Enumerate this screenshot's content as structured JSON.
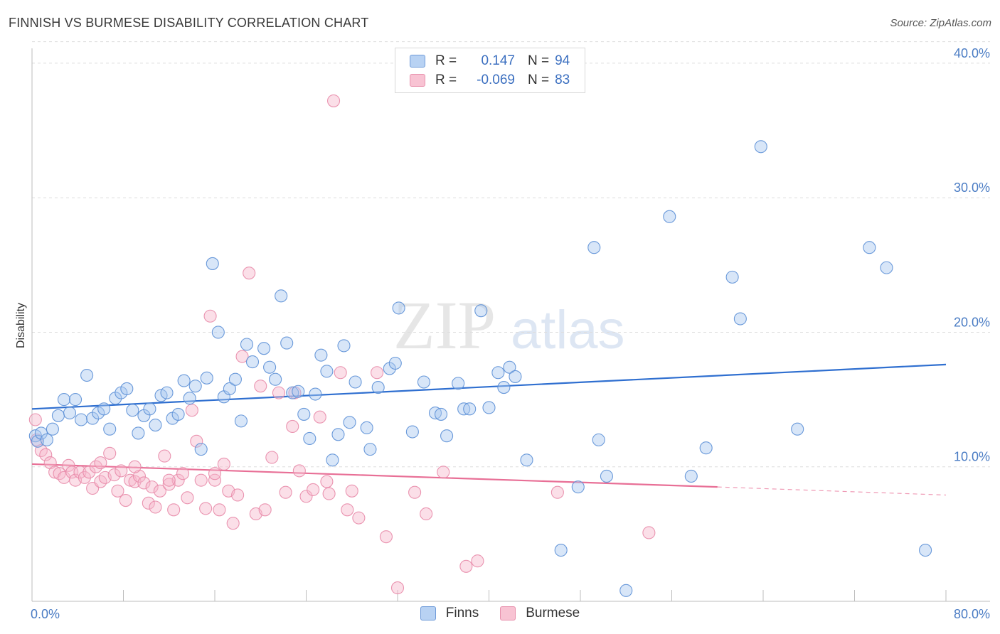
{
  "title": "FINNISH VS BURMESE DISABILITY CORRELATION CHART",
  "source": "Source: ZipAtlas.com",
  "watermark": {
    "zip": "ZIP",
    "atlas": "atlas"
  },
  "legend": {
    "finns": {
      "r_label": "R =",
      "r_value": "0.147",
      "n_label": "N =",
      "n_value": "94"
    },
    "burmese": {
      "r_label": "R =",
      "r_value": "-0.069",
      "n_label": "N =",
      "n_value": "83"
    }
  },
  "chart_data": {
    "type": "scatter",
    "title": "FINNISH VS BURMESE DISABILITY CORRELATION CHART",
    "xlabel": "",
    "ylabel": "Disability",
    "xlim": [
      0,
      80
    ],
    "ylim": [
      0,
      41
    ],
    "x_tick_labels": [
      "0.0%",
      "80.0%"
    ],
    "y_ticks": [
      10,
      20,
      30,
      40
    ],
    "y_tick_labels": [
      "10.0%",
      "20.0%",
      "30.0%",
      "40.0%"
    ],
    "grid": "horizontal dashed",
    "legend_position": "top-center",
    "colors": {
      "finns_fill": "#a9c8f0",
      "finns_stroke": "#5b8fd6",
      "finns_line": "#2f6fd0",
      "burmese_fill": "#f6b8cb",
      "burmese_stroke": "#e88aa8",
      "burmese_line": "#e86f96"
    },
    "series": [
      {
        "name": "Finns",
        "r": 0.147,
        "n": 94,
        "trend": {
          "x": [
            0,
            80
          ],
          "y": [
            14.3,
            17.6
          ]
        },
        "points": [
          [
            0.3,
            12.3
          ],
          [
            0.5,
            11.9
          ],
          [
            0.8,
            12.5
          ],
          [
            1.3,
            12.0
          ],
          [
            1.8,
            12.8
          ],
          [
            2.3,
            13.8
          ],
          [
            2.8,
            15.0
          ],
          [
            3.3,
            14.0
          ],
          [
            3.8,
            15.0
          ],
          [
            4.3,
            13.5
          ],
          [
            4.8,
            16.8
          ],
          [
            5.3,
            13.6
          ],
          [
            5.8,
            14.0
          ],
          [
            6.3,
            14.3
          ],
          [
            6.8,
            12.8
          ],
          [
            7.3,
            15.1
          ],
          [
            7.8,
            15.5
          ],
          [
            8.3,
            15.8
          ],
          [
            8.8,
            14.2
          ],
          [
            9.3,
            12.5
          ],
          [
            9.8,
            13.8
          ],
          [
            10.3,
            14.3
          ],
          [
            10.8,
            13.1
          ],
          [
            11.3,
            15.3
          ],
          [
            11.8,
            15.5
          ],
          [
            12.3,
            13.6
          ],
          [
            12.8,
            13.9
          ],
          [
            13.3,
            16.4
          ],
          [
            13.8,
            15.1
          ],
          [
            14.3,
            16.0
          ],
          [
            14.8,
            11.3
          ],
          [
            15.3,
            16.6
          ],
          [
            15.8,
            25.1
          ],
          [
            16.3,
            20.0
          ],
          [
            16.8,
            15.2
          ],
          [
            17.3,
            15.8
          ],
          [
            17.8,
            16.5
          ],
          [
            18.3,
            13.4
          ],
          [
            18.8,
            19.1
          ],
          [
            19.3,
            17.8
          ],
          [
            20.3,
            18.8
          ],
          [
            20.8,
            17.4
          ],
          [
            21.3,
            16.5
          ],
          [
            21.8,
            22.7
          ],
          [
            22.3,
            19.2
          ],
          [
            22.8,
            15.5
          ],
          [
            23.3,
            15.6
          ],
          [
            23.8,
            13.9
          ],
          [
            24.3,
            12.1
          ],
          [
            24.8,
            15.4
          ],
          [
            25.3,
            18.3
          ],
          [
            25.8,
            17.1
          ],
          [
            26.3,
            10.5
          ],
          [
            26.8,
            12.4
          ],
          [
            27.3,
            19.0
          ],
          [
            27.8,
            13.3
          ],
          [
            28.3,
            16.3
          ],
          [
            29.3,
            12.9
          ],
          [
            29.6,
            11.3
          ],
          [
            30.3,
            15.9
          ],
          [
            31.3,
            17.3
          ],
          [
            31.8,
            17.7
          ],
          [
            32.1,
            21.8
          ],
          [
            33.3,
            12.6
          ],
          [
            34.3,
            16.3
          ],
          [
            35.3,
            14.0
          ],
          [
            35.8,
            13.9
          ],
          [
            36.3,
            12.3
          ],
          [
            37.3,
            16.2
          ],
          [
            37.8,
            14.3
          ],
          [
            38.3,
            14.3
          ],
          [
            39.3,
            21.6
          ],
          [
            40.0,
            14.4
          ],
          [
            40.8,
            17.0
          ],
          [
            41.3,
            15.9
          ],
          [
            41.8,
            17.4
          ],
          [
            42.3,
            16.7
          ],
          [
            43.3,
            10.5
          ],
          [
            46.3,
            3.8
          ],
          [
            47.8,
            8.5
          ],
          [
            49.2,
            26.3
          ],
          [
            49.6,
            12.0
          ],
          [
            50.3,
            9.3
          ],
          [
            52.0,
            0.8
          ],
          [
            55.8,
            28.6
          ],
          [
            57.7,
            9.3
          ],
          [
            59.0,
            11.4
          ],
          [
            61.3,
            24.1
          ],
          [
            62.0,
            21.0
          ],
          [
            63.8,
            33.8
          ],
          [
            67.0,
            12.8
          ],
          [
            73.3,
            26.3
          ],
          [
            74.8,
            24.8
          ],
          [
            78.2,
            3.8
          ]
        ]
      },
      {
        "name": "Burmese",
        "r": -0.069,
        "n": 83,
        "trend": {
          "x": [
            0,
            60
          ],
          "y": [
            10.2,
            8.5
          ],
          "dashed_x": [
            60,
            80
          ],
          "dashed_y": [
            8.5,
            7.9
          ]
        },
        "points": [
          [
            0.3,
            13.5
          ],
          [
            0.4,
            12.0
          ],
          [
            0.8,
            11.2
          ],
          [
            1.2,
            10.9
          ],
          [
            1.6,
            10.3
          ],
          [
            2.0,
            9.6
          ],
          [
            2.4,
            9.5
          ],
          [
            2.8,
            9.2
          ],
          [
            3.2,
            10.1
          ],
          [
            3.5,
            9.6
          ],
          [
            3.8,
            9.0
          ],
          [
            4.2,
            9.6
          ],
          [
            4.6,
            9.2
          ],
          [
            5.0,
            9.6
          ],
          [
            5.3,
            8.4
          ],
          [
            5.6,
            10.0
          ],
          [
            6.0,
            8.9
          ],
          [
            6.4,
            9.2
          ],
          [
            6.8,
            11.0
          ],
          [
            7.2,
            9.4
          ],
          [
            7.5,
            8.2
          ],
          [
            7.8,
            9.7
          ],
          [
            8.2,
            7.5
          ],
          [
            8.6,
            9.0
          ],
          [
            9.0,
            8.9
          ],
          [
            9.4,
            9.3
          ],
          [
            9.8,
            8.8
          ],
          [
            10.2,
            7.3
          ],
          [
            10.5,
            8.5
          ],
          [
            10.8,
            7.0
          ],
          [
            11.2,
            8.2
          ],
          [
            11.6,
            10.8
          ],
          [
            12.0,
            8.7
          ],
          [
            12.4,
            6.8
          ],
          [
            12.8,
            9.0
          ],
          [
            13.2,
            9.5
          ],
          [
            13.6,
            7.7
          ],
          [
            14.0,
            14.2
          ],
          [
            14.4,
            11.9
          ],
          [
            14.8,
            9.0
          ],
          [
            15.2,
            6.9
          ],
          [
            15.6,
            21.2
          ],
          [
            16.0,
            9.0
          ],
          [
            16.4,
            6.8
          ],
          [
            16.8,
            10.2
          ],
          [
            17.2,
            8.2
          ],
          [
            17.6,
            5.8
          ],
          [
            18.0,
            7.9
          ],
          [
            18.4,
            18.2
          ],
          [
            19.0,
            24.4
          ],
          [
            19.6,
            6.5
          ],
          [
            20.4,
            6.8
          ],
          [
            21.0,
            10.7
          ],
          [
            21.6,
            15.5
          ],
          [
            22.2,
            8.1
          ],
          [
            22.8,
            13.0
          ],
          [
            23.4,
            9.7
          ],
          [
            24.0,
            7.8
          ],
          [
            24.6,
            8.3
          ],
          [
            25.2,
            13.7
          ],
          [
            25.8,
            8.9
          ],
          [
            26.4,
            37.2
          ],
          [
            27.0,
            17.0
          ],
          [
            27.6,
            6.8
          ],
          [
            28.6,
            6.2
          ],
          [
            30.2,
            17.0
          ],
          [
            31.0,
            4.8
          ],
          [
            32.0,
            1.0
          ],
          [
            33.5,
            8.1
          ],
          [
            34.5,
            6.5
          ],
          [
            36.0,
            9.6
          ],
          [
            38.0,
            2.6
          ],
          [
            39.0,
            3.0
          ],
          [
            46.0,
            8.1
          ],
          [
            54.0,
            5.1
          ],
          [
            28.0,
            8.2
          ],
          [
            26.0,
            8.0
          ],
          [
            20.0,
            16.0
          ],
          [
            23.0,
            15.5
          ],
          [
            16.0,
            9.5
          ],
          [
            12.0,
            9.0
          ],
          [
            9.0,
            10.0
          ],
          [
            6.0,
            10.3
          ]
        ]
      }
    ]
  }
}
